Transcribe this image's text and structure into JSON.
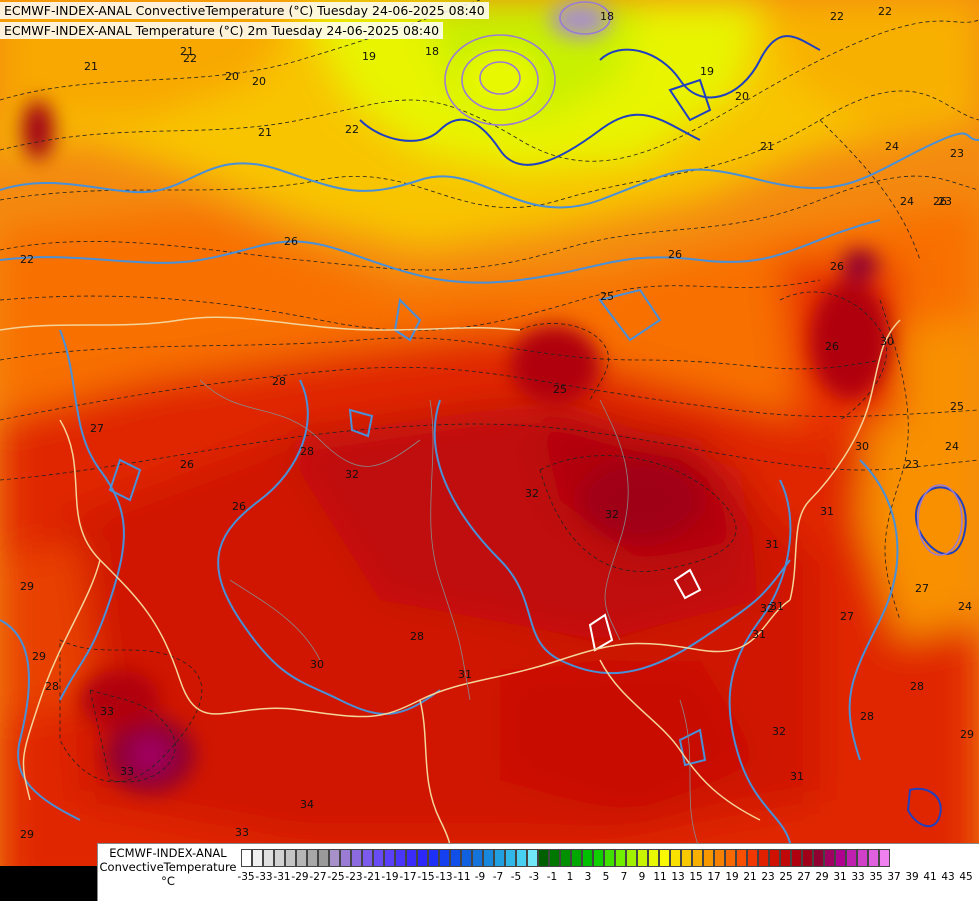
{
  "header": {
    "line1": "ECMWF-INDEX-ANAL ConvectiveTemperature (°C) Tuesday 24-06-2025 08:40",
    "line2": "ECMWF-INDEX-ANAL Temperature (°C) 2m Tuesday 24-06-2025 08:40"
  },
  "legend": {
    "title_line1": "ECMWF-INDEX-ANAL",
    "title_line2": "ConvectiveTemperature",
    "unit": "°C",
    "ticks": [
      "-35",
      "-33",
      "-31",
      "-29",
      "-27",
      "-25",
      "-23",
      "-21",
      "-19",
      "-17",
      "-15",
      "-13",
      "-11",
      "-9",
      "-7",
      "-5",
      "-3",
      "-1",
      "1",
      "3",
      "5",
      "7",
      "9",
      "11",
      "13",
      "15",
      "17",
      "19",
      "21",
      "23",
      "25",
      "27",
      "29",
      "31",
      "33",
      "35",
      "37",
      "39",
      "41",
      "43",
      "45"
    ],
    "colors": [
      "#ffffff",
      "#f0f0f0",
      "#e0e0e0",
      "#d2d2d2",
      "#c4c4c4",
      "#b6b6b6",
      "#a8a8a8",
      "#9a9a9a",
      "#a890c8",
      "#9a7cd4",
      "#8c6ae0",
      "#7c5aec",
      "#6a4cf4",
      "#5a40f8",
      "#4a36fa",
      "#3c2cfc",
      "#2c28fc",
      "#1e30f8",
      "#1440f0",
      "#1050e8",
      "#1060e0",
      "#1474dc",
      "#1888dc",
      "#20a0e0",
      "#30b8e8",
      "#48d0f0",
      "#70e8f8",
      "#006000",
      "#007800",
      "#009000",
      "#00a800",
      "#00c000",
      "#10d000",
      "#40e000",
      "#70f000",
      "#a0f000",
      "#c8f400",
      "#e8f800",
      "#f8f800",
      "#f8e000",
      "#f8c800",
      "#f8b000",
      "#f89800",
      "#f88000",
      "#f86800",
      "#f85000",
      "#f03800",
      "#e02000",
      "#d01000",
      "#c00808",
      "#b00010",
      "#a00018",
      "#900030",
      "#a00060",
      "#b00090",
      "#c020b0",
      "#d040c8",
      "#e060e0",
      "#f080f0"
    ],
    "tick_values": [
      -35,
      -33,
      -31,
      -29,
      -27,
      -25,
      -23,
      -21,
      -19,
      -17,
      -15,
      -13,
      -11,
      -9,
      -7,
      -5,
      -3,
      -1,
      1,
      3,
      5,
      7,
      9,
      11,
      13,
      15,
      17,
      19,
      21,
      23,
      25,
      27,
      29,
      31,
      33,
      35,
      37,
      39,
      41,
      43,
      45
    ]
  },
  "contour_labels": [
    "21",
    "22",
    "20",
    "21",
    "22",
    "19",
    "18",
    "18",
    "19",
    "20",
    "21",
    "22",
    "22",
    "24",
    "23",
    "24",
    "26",
    "26",
    "26",
    "25",
    "26",
    "26",
    "28",
    "27",
    "26",
    "28",
    "26",
    "29",
    "29",
    "28",
    "29",
    "30",
    "30",
    "32",
    "32",
    "33",
    "33",
    "34",
    "32",
    "31",
    "31",
    "31",
    "31",
    "32",
    "31",
    "32",
    "30",
    "28",
    "29",
    "27",
    "25",
    "24",
    "23",
    "24",
    "22",
    "25",
    "27",
    "28",
    "20",
    "21",
    "23",
    "31",
    "33",
    "28"
  ]
}
